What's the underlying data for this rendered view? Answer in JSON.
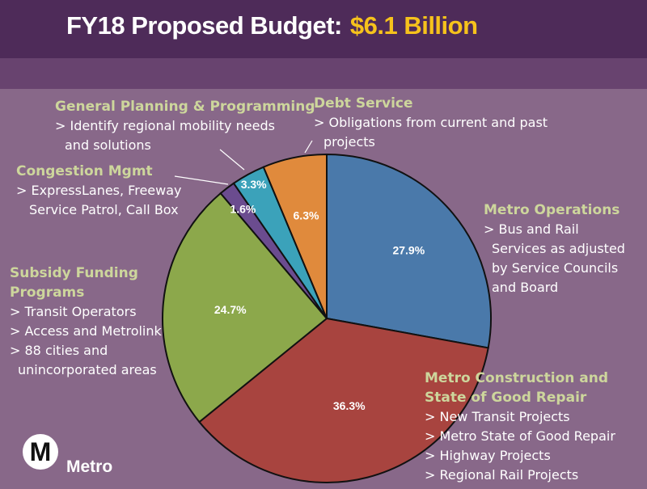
{
  "header": {
    "title": "FY18 Proposed Budget:",
    "amount": "$6.1 Billion"
  },
  "logo": {
    "letter": "M",
    "name": "Metro"
  },
  "chart_data": {
    "type": "pie",
    "title": "FY18 Proposed Budget: $6.1 Billion",
    "start": "12 o'clock, clockwise",
    "slices": [
      {
        "name": "Metro Operations",
        "value": 27.9,
        "label": "27.9%",
        "color": "#4a79aa",
        "details": [
          "> Bus and Rail",
          "Services as adjusted",
          "by Service Councils",
          "and Board"
        ]
      },
      {
        "name": "Metro Construction and State of Good Repair",
        "value": 36.3,
        "label": "36.3%",
        "color": "#a8443f",
        "details": [
          "> New Transit Projects",
          "> Metro State of Good Repair",
          "> Highway Projects",
          "> Regional Rail Projects"
        ]
      },
      {
        "name": "Subsidy Funding Programs",
        "value": 24.7,
        "label": "24.7%",
        "color": "#8ca84b",
        "details": [
          "> Transit Operators",
          "> Access and Metrolink",
          "> 88 cities and",
          "unincorporated areas"
        ]
      },
      {
        "name": "Congestion Mgmt",
        "value": 1.6,
        "label": "1.6%",
        "color": "#6b4c8f",
        "details": [
          "> ExpressLanes, Freeway",
          "Service Patrol, Call Box"
        ]
      },
      {
        "name": "General Planning & Programming",
        "value": 3.3,
        "label": "3.3%",
        "color": "#3ba2ba",
        "details": [
          "> Identify regional mobility needs",
          "and solutions"
        ]
      },
      {
        "name": "Debt Service",
        "value": 6.3,
        "label": "6.3%",
        "color": "#e08a3c",
        "details": [
          "> Obligations from current and past",
          "projects"
        ]
      }
    ]
  }
}
